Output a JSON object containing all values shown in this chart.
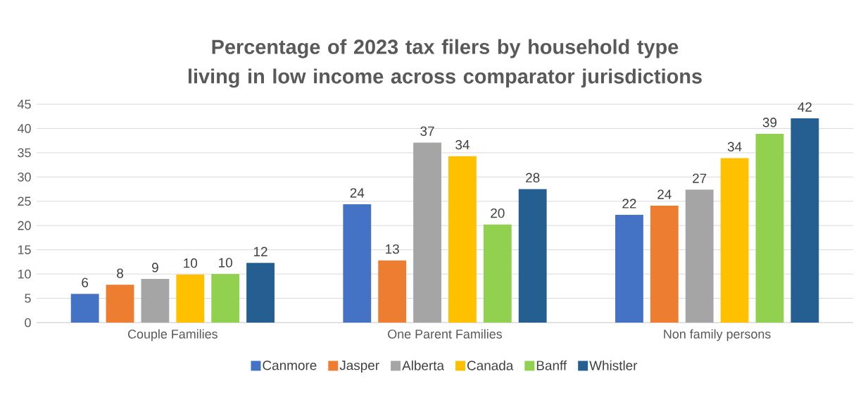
{
  "chart_data": {
    "type": "bar",
    "title": "Percentage of 2023 tax filers by household type living in low income across comparator jurisdictions",
    "categories": [
      "Couple Families",
      "One Parent Families",
      "Non family persons"
    ],
    "series": [
      {
        "name": "Canmore",
        "color": "#4472c4",
        "values": [
          5.9,
          24.4,
          22.2
        ],
        "value_labels": [
          "6",
          "24",
          "22"
        ]
      },
      {
        "name": "Jasper",
        "color": "#ed7d31",
        "values": [
          7.8,
          12.8,
          24.1
        ],
        "value_labels": [
          "8",
          "13",
          "24"
        ]
      },
      {
        "name": "Alberta",
        "color": "#a5a5a5",
        "values": [
          9.0,
          37.1,
          27.4
        ],
        "value_labels": [
          "9",
          "37",
          "27"
        ]
      },
      {
        "name": "Canada",
        "color": "#ffc000",
        "values": [
          9.9,
          34.3,
          33.9
        ],
        "value_labels": [
          "10",
          "34",
          "34"
        ]
      },
      {
        "name": "Banff",
        "color": "#92d050",
        "values": [
          10.0,
          20.2,
          38.9
        ],
        "value_labels": [
          "10",
          "20",
          "39"
        ]
      },
      {
        "name": "Whistler",
        "color": "#255e91",
        "values": [
          12.3,
          27.5,
          42.1
        ],
        "value_labels": [
          "12",
          "28",
          "42"
        ]
      }
    ],
    "ylim": [
      0,
      45
    ],
    "yticks": [
      0,
      5,
      10,
      15,
      20,
      25,
      30,
      35,
      40,
      45
    ],
    "grid": "y",
    "legend": "bottom"
  }
}
